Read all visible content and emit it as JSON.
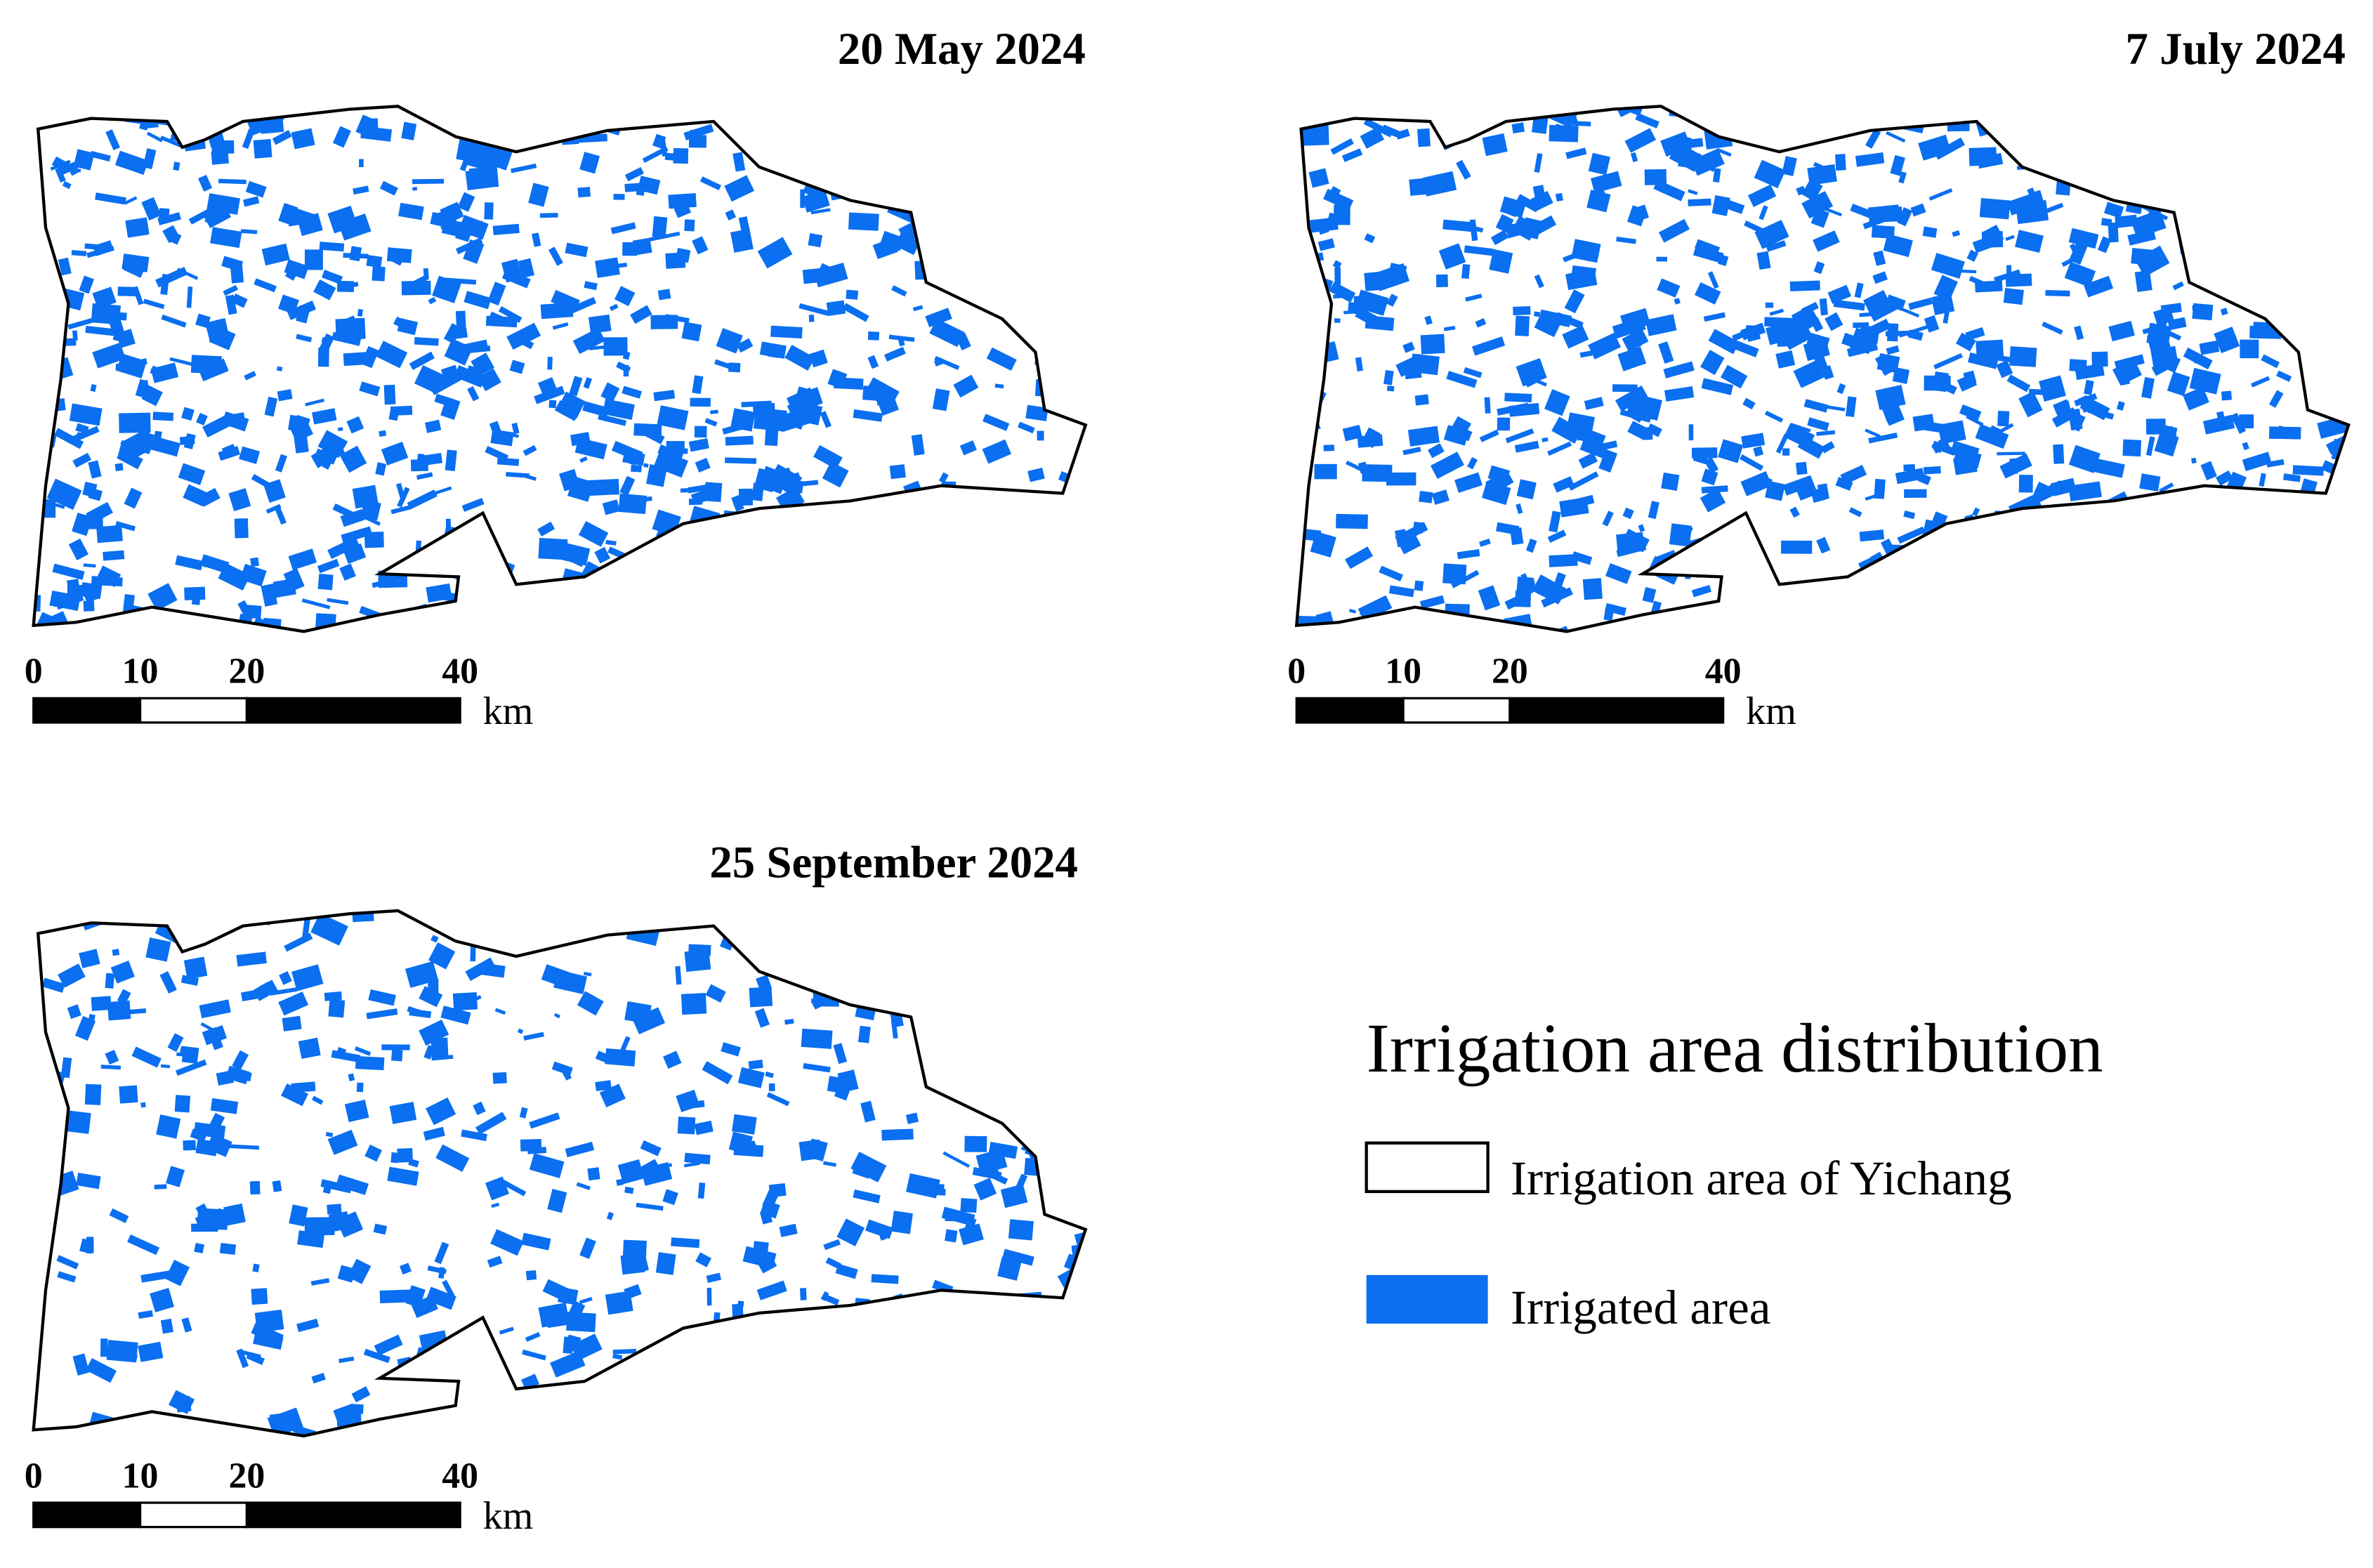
{
  "panels": [
    {
      "title": "20 May 2024",
      "scale_bar": {
        "ticks": [
          0,
          10,
          20,
          40
        ],
        "unit": "km"
      }
    },
    {
      "title": "7 July 2024",
      "scale_bar": {
        "ticks": [
          0,
          10,
          20,
          40
        ],
        "unit": "km"
      }
    },
    {
      "title": "25 September 2024",
      "scale_bar": {
        "ticks": [
          0,
          10,
          20,
          40
        ],
        "unit": "km"
      }
    }
  ],
  "legend": {
    "title": "Irrigation area distribution",
    "items": [
      "Irrigation area of Yichang",
      "Irrigated area"
    ]
  }
}
